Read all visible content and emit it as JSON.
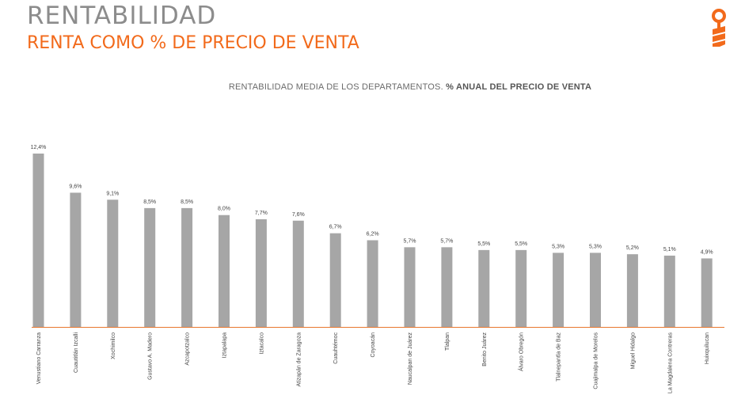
{
  "header": {
    "title": "RENTABILIDAD",
    "subtitle": "RENTA COMO % DE PRECIO DE VENTA"
  },
  "colors": {
    "title": "#8c8c8c",
    "accent": "#f26a1b",
    "bar": "#a6a6a6",
    "axis": "#e8772e"
  },
  "logo": {
    "icon": "key-logo-icon"
  },
  "chart_data": {
    "type": "bar",
    "title_prefix": "RENTABILIDAD MEDIA DE LOS DEPARTAMENTOS. ",
    "title_bold": "% ANUAL DEL PRECIO DE VENTA",
    "xlabel": "",
    "ylabel": "",
    "grid": false,
    "legend": "none",
    "ylim": [
      0,
      12.4
    ],
    "categories": [
      "Venustiano Carranza",
      "Cuautitlán Izcalli",
      "Xochimilco",
      "Gustavo A. Madero",
      "Azcapotzalco",
      "Iztapalapa",
      "Iztacalco",
      "Atizapán de Zaragoza",
      "Cuauhtémoc",
      "Coyoacán",
      "Naucalpan de Juárez",
      "Tlalpan",
      "Benito Juárez",
      "Álvaro Obregón",
      "Tlalnepantla de Baz",
      "Cuajimalpa de Morelos",
      "Miguel Hidalgo",
      "La Magdalena Contreras",
      "Huixquilucan"
    ],
    "values": [
      12.4,
      9.6,
      9.1,
      8.5,
      8.5,
      8.0,
      7.7,
      7.6,
      6.7,
      6.2,
      5.7,
      5.7,
      5.5,
      5.5,
      5.3,
      5.3,
      5.2,
      5.1,
      4.9
    ],
    "value_labels": [
      "12,4%",
      "9,6%",
      "9,1%",
      "8,5%",
      "8,5%",
      "8,0%",
      "7,7%",
      "7,6%",
      "6,7%",
      "6,2%",
      "5,7%",
      "5,7%",
      "5,5%",
      "5,5%",
      "5,3%",
      "5,3%",
      "5,2%",
      "5,1%",
      "4,9%"
    ]
  }
}
